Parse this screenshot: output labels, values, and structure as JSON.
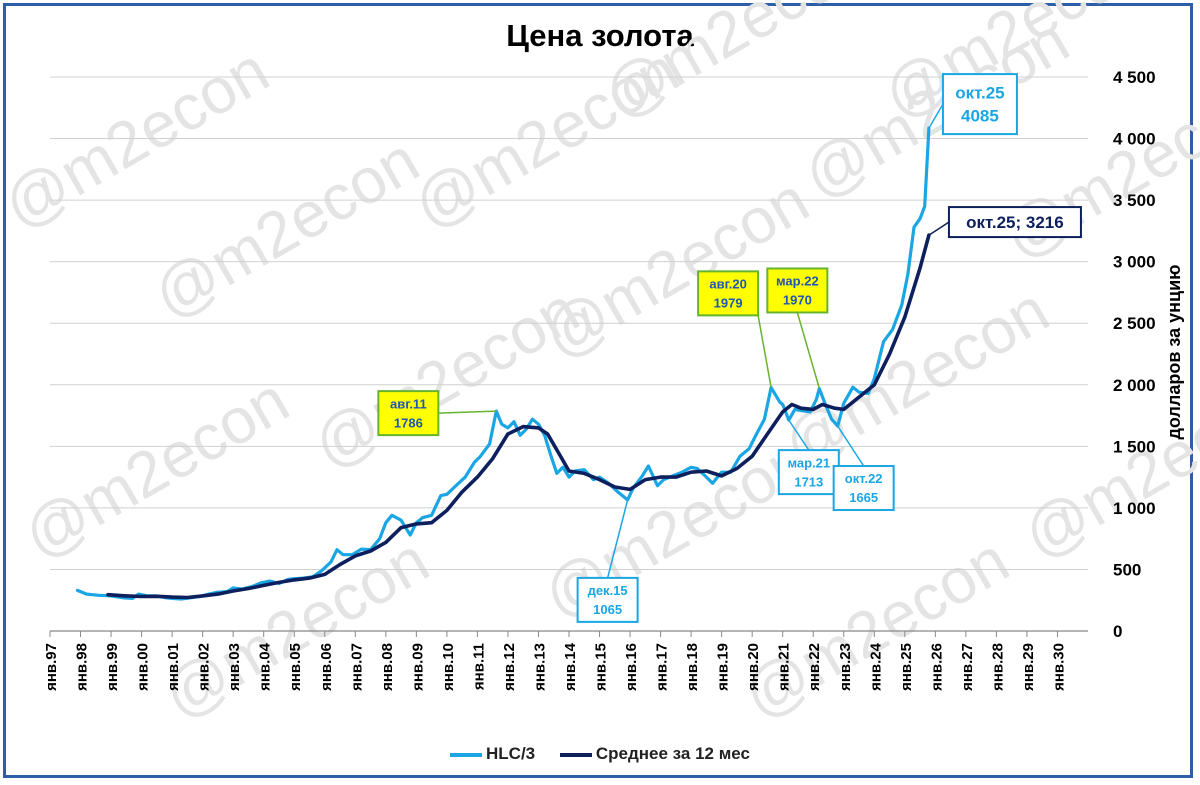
{
  "chart_data": {
    "type": "line",
    "title": "Цена золота",
    "ylabel": "долларов за унцию",
    "ylim": [
      0,
      4500
    ],
    "yticks": [
      0,
      500,
      1000,
      1500,
      2000,
      2500,
      3000,
      3500,
      4000,
      4500
    ],
    "ytick_labels": [
      "0",
      "500",
      "1 000",
      "1 500",
      "2 000",
      "2 500",
      "3 000",
      "3 500",
      "4 000",
      "4 500"
    ],
    "xlim": [
      1997,
      2031
    ],
    "xtick_labels": [
      "янв.97",
      "янв.98",
      "янв.99",
      "янв.00",
      "янв.01",
      "янв.02",
      "янв.03",
      "янв.04",
      "янв.05",
      "янв.06",
      "янв.07",
      "янв.08",
      "янв.09",
      "янв.10",
      "янв.11",
      "янв.12",
      "янв.13",
      "янв.14",
      "янв.15",
      "янв.16",
      "янв.17",
      "янв.18",
      "янв.19",
      "янв.20",
      "янв.21",
      "янв.22",
      "янв.23",
      "янв.24",
      "янв.25",
      "янв.26",
      "янв.27",
      "янв.28",
      "янв.29",
      "янв.30"
    ],
    "grid": true,
    "legend_position": "bottom",
    "watermark": "@m2econ",
    "series": [
      {
        "name": "HLC/3",
        "color": "#1aa6e4",
        "points": [
          [
            1997.9,
            330
          ],
          [
            1998.2,
            300
          ],
          [
            1998.6,
            290
          ],
          [
            1999.0,
            285
          ],
          [
            1999.4,
            270
          ],
          [
            1999.7,
            265
          ],
          [
            1999.9,
            300
          ],
          [
            2000.2,
            285
          ],
          [
            2000.5,
            285
          ],
          [
            2000.8,
            270
          ],
          [
            2001.0,
            265
          ],
          [
            2001.3,
            260
          ],
          [
            2001.6,
            270
          ],
          [
            2001.9,
            280
          ],
          [
            2002.2,
            300
          ],
          [
            2002.5,
            315
          ],
          [
            2002.8,
            320
          ],
          [
            2003.0,
            350
          ],
          [
            2003.3,
            340
          ],
          [
            2003.6,
            360
          ],
          [
            2003.9,
            390
          ],
          [
            2004.2,
            405
          ],
          [
            2004.5,
            385
          ],
          [
            2004.8,
            420
          ],
          [
            2005.0,
            425
          ],
          [
            2005.3,
            430
          ],
          [
            2005.6,
            440
          ],
          [
            2005.9,
            490
          ],
          [
            2006.2,
            560
          ],
          [
            2006.4,
            660
          ],
          [
            2006.6,
            620
          ],
          [
            2006.9,
            620
          ],
          [
            2007.2,
            665
          ],
          [
            2007.5,
            660
          ],
          [
            2007.8,
            750
          ],
          [
            2008.0,
            880
          ],
          [
            2008.2,
            940
          ],
          [
            2008.5,
            900
          ],
          [
            2008.8,
            780
          ],
          [
            2009.0,
            880
          ],
          [
            2009.2,
            920
          ],
          [
            2009.5,
            940
          ],
          [
            2009.8,
            1100
          ],
          [
            2010.0,
            1110
          ],
          [
            2010.3,
            1180
          ],
          [
            2010.6,
            1250
          ],
          [
            2010.9,
            1370
          ],
          [
            2011.1,
            1420
          ],
          [
            2011.4,
            1520
          ],
          [
            2011.62,
            1786
          ],
          [
            2011.8,
            1680
          ],
          [
            2012.0,
            1650
          ],
          [
            2012.2,
            1700
          ],
          [
            2012.4,
            1590
          ],
          [
            2012.6,
            1640
          ],
          [
            2012.8,
            1720
          ],
          [
            2013.0,
            1680
          ],
          [
            2013.2,
            1590
          ],
          [
            2013.4,
            1430
          ],
          [
            2013.6,
            1280
          ],
          [
            2013.8,
            1330
          ],
          [
            2014.0,
            1250
          ],
          [
            2014.2,
            1300
          ],
          [
            2014.5,
            1310
          ],
          [
            2014.8,
            1230
          ],
          [
            2015.0,
            1250
          ],
          [
            2015.3,
            1200
          ],
          [
            2015.6,
            1130
          ],
          [
            2015.92,
            1065
          ],
          [
            2016.1,
            1160
          ],
          [
            2016.4,
            1260
          ],
          [
            2016.6,
            1340
          ],
          [
            2016.9,
            1180
          ],
          [
            2017.1,
            1230
          ],
          [
            2017.4,
            1260
          ],
          [
            2017.7,
            1290
          ],
          [
            2018.0,
            1330
          ],
          [
            2018.2,
            1320
          ],
          [
            2018.5,
            1250
          ],
          [
            2018.7,
            1200
          ],
          [
            2019.0,
            1290
          ],
          [
            2019.3,
            1290
          ],
          [
            2019.6,
            1420
          ],
          [
            2019.9,
            1480
          ],
          [
            2020.1,
            1580
          ],
          [
            2020.4,
            1720
          ],
          [
            2020.62,
            1979
          ],
          [
            2020.9,
            1860
          ],
          [
            2021.0,
            1840
          ],
          [
            2021.2,
            1713
          ],
          [
            2021.4,
            1800
          ],
          [
            2021.6,
            1790
          ],
          [
            2021.9,
            1780
          ],
          [
            2022.1,
            1880
          ],
          [
            2022.2,
            1970
          ],
          [
            2022.4,
            1840
          ],
          [
            2022.6,
            1720
          ],
          [
            2022.8,
            1665
          ],
          [
            2023.0,
            1850
          ],
          [
            2023.3,
            1980
          ],
          [
            2023.5,
            1940
          ],
          [
            2023.8,
            1930
          ],
          [
            2024.0,
            2050
          ],
          [
            2024.3,
            2350
          ],
          [
            2024.6,
            2450
          ],
          [
            2024.9,
            2650
          ],
          [
            2025.1,
            2900
          ],
          [
            2025.3,
            3280
          ],
          [
            2025.5,
            3350
          ],
          [
            2025.65,
            3450
          ],
          [
            2025.79,
            4085
          ]
        ]
      },
      {
        "name": "Среднее за 12 мес",
        "color": "#0d1f5c",
        "points": [
          [
            1998.9,
            295
          ],
          [
            1999.5,
            285
          ],
          [
            2000.0,
            280
          ],
          [
            2000.5,
            282
          ],
          [
            2001.0,
            275
          ],
          [
            2001.5,
            272
          ],
          [
            2002.0,
            285
          ],
          [
            2002.5,
            300
          ],
          [
            2003.0,
            325
          ],
          [
            2003.5,
            345
          ],
          [
            2004.0,
            370
          ],
          [
            2004.5,
            395
          ],
          [
            2005.0,
            415
          ],
          [
            2005.5,
            430
          ],
          [
            2006.0,
            460
          ],
          [
            2006.5,
            540
          ],
          [
            2007.0,
            610
          ],
          [
            2007.5,
            650
          ],
          [
            2008.0,
            720
          ],
          [
            2008.5,
            840
          ],
          [
            2009.0,
            870
          ],
          [
            2009.5,
            880
          ],
          [
            2010.0,
            980
          ],
          [
            2010.5,
            1130
          ],
          [
            2011.0,
            1250
          ],
          [
            2011.5,
            1400
          ],
          [
            2012.0,
            1600
          ],
          [
            2012.5,
            1660
          ],
          [
            2013.0,
            1650
          ],
          [
            2013.3,
            1600
          ],
          [
            2013.7,
            1430
          ],
          [
            2014.0,
            1300
          ],
          [
            2014.5,
            1280
          ],
          [
            2015.0,
            1230
          ],
          [
            2015.5,
            1170
          ],
          [
            2016.0,
            1150
          ],
          [
            2016.5,
            1230
          ],
          [
            2017.0,
            1250
          ],
          [
            2017.5,
            1250
          ],
          [
            2018.0,
            1290
          ],
          [
            2018.5,
            1300
          ],
          [
            2019.0,
            1260
          ],
          [
            2019.5,
            1320
          ],
          [
            2020.0,
            1420
          ],
          [
            2020.5,
            1600
          ],
          [
            2021.0,
            1780
          ],
          [
            2021.3,
            1840
          ],
          [
            2021.6,
            1810
          ],
          [
            2022.0,
            1800
          ],
          [
            2022.3,
            1840
          ],
          [
            2022.7,
            1810
          ],
          [
            2023.0,
            1800
          ],
          [
            2023.5,
            1900
          ],
          [
            2024.0,
            2000
          ],
          [
            2024.5,
            2250
          ],
          [
            2025.0,
            2550
          ],
          [
            2025.5,
            2950
          ],
          [
            2025.79,
            3216
          ]
        ]
      }
    ],
    "annotations": [
      {
        "lines": [
          "авг.11",
          "1786"
        ],
        "x": 2011.62,
        "y": 1786,
        "style": "yellow"
      },
      {
        "lines": [
          "дек.15",
          "1065"
        ],
        "x": 2015.92,
        "y": 1065,
        "style": "blue"
      },
      {
        "lines": [
          "авг.20",
          "1979"
        ],
        "x": 2020.62,
        "y": 1979,
        "style": "yellow"
      },
      {
        "lines": [
          "мар.21",
          "1713"
        ],
        "x": 2021.2,
        "y": 1713,
        "style": "blue"
      },
      {
        "lines": [
          "мар.22",
          "1970"
        ],
        "x": 2022.2,
        "y": 1970,
        "style": "yellow"
      },
      {
        "lines": [
          "окт.22",
          "1665"
        ],
        "x": 2022.8,
        "y": 1665,
        "style": "blue"
      },
      {
        "lines": [
          "окт.25",
          "4085"
        ],
        "x": 2025.79,
        "y": 4085,
        "style": "bigblue"
      },
      {
        "lines": [
          "окт.25; 3216"
        ],
        "x": 2025.79,
        "y": 3216,
        "style": "navy"
      }
    ]
  }
}
